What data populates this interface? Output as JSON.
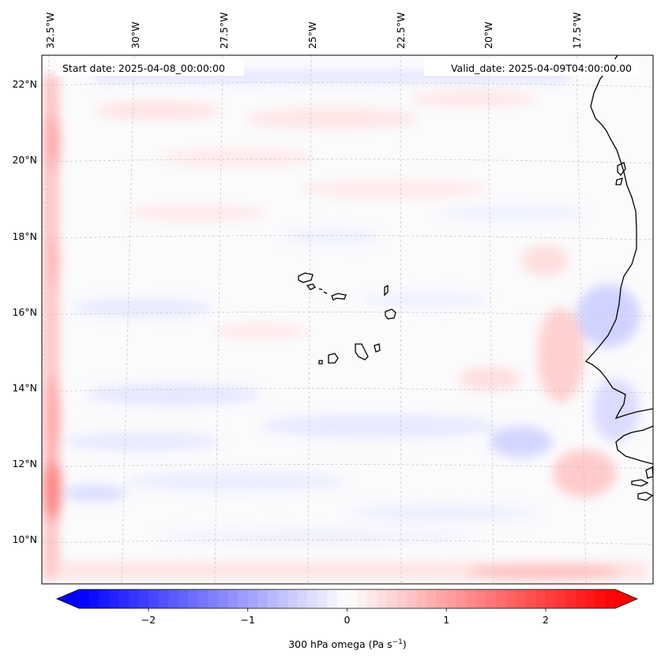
{
  "map": {
    "start_date": "Start date: 2025-04-08_00:00:00",
    "valid_date": "Valid_date: 2025-04-09T04:00:00.00",
    "lon_labels": [
      "32.5°W",
      "30°W",
      "27.5°W",
      "25°W",
      "22.5°W",
      "20°W",
      "17.5°W"
    ],
    "lat_labels": [
      "22°N",
      "20°N",
      "18°N",
      "16°N",
      "14°N",
      "12°N",
      "10°N"
    ]
  },
  "colorbar": {
    "label": "300 hPa omega (Pa s",
    "label_sup": "−1",
    "label_close": ")",
    "min": -2.7,
    "max": 2.7,
    "ticks": [
      "−2",
      "−1",
      "0",
      "1",
      "2"
    ],
    "tick_values": [
      -2,
      -1,
      0,
      1,
      2
    ],
    "low_color": "#0000ff",
    "mid_color": "#ffffff",
    "high_color": "#ff0000"
  },
  "colors": {
    "coast": "#000000",
    "grid": "#c8c8c8",
    "frame": "#000000"
  }
}
